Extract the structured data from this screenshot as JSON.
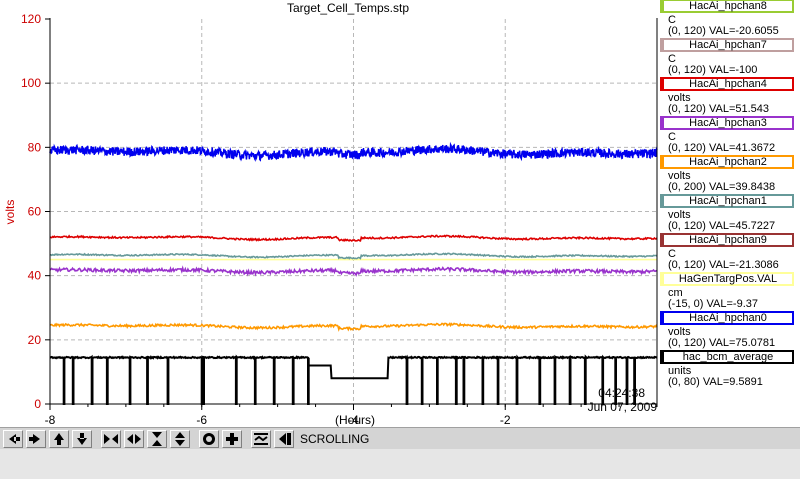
{
  "chart_data": {
    "type": "line",
    "title": "Target_Cell_Temps.stp",
    "ylabel": "volts",
    "xlabel": "(Hours)",
    "ylim": [
      0,
      120
    ],
    "xlim": [
      -8,
      0
    ],
    "yticks": [
      "0",
      "20",
      "40",
      "60",
      "80",
      "100",
      "120"
    ],
    "xticks": [
      "-8",
      "-6",
      "-4",
      "-2"
    ],
    "time_label": "04:24:38",
    "date_label": "Jun 07, 2009",
    "grid": true,
    "legend_position": "right",
    "series": [
      {
        "name": "HacAi_hpchan8",
        "unit": "C",
        "range": "(0, 120) VAL=-20.6055",
        "color": "#99cc33",
        "level": null,
        "noise": 0
      },
      {
        "name": "HacAi_hpchan7",
        "unit": "C",
        "range": "(0, 120) VAL=-100",
        "color": "#bf9f9f",
        "level": null,
        "noise": 0
      },
      {
        "name": "HacAi_hpchan4",
        "unit": "volts",
        "range": "(0, 120) VAL=51.543",
        "color": "#dd0000",
        "level": 51.8,
        "noise": 0.25
      },
      {
        "name": "HacAi_hpchan3",
        "unit": "C",
        "range": "(0, 120) VAL=41.3672",
        "color": "#9933cc",
        "level": 41.5,
        "noise": 0.5
      },
      {
        "name": "HacAi_hpchan2",
        "unit": "volts",
        "range": "(0, 200) VAL=39.8438",
        "color": "#ff9900",
        "level": 24.3,
        "noise": 0.35
      },
      {
        "name": "HacAi_hpchan1",
        "unit": "volts",
        "range": "(0, 120) VAL=45.7227",
        "color": "#669999",
        "level": 46.3,
        "noise": 0.2
      },
      {
        "name": "HacAi_hpchan9",
        "unit": "C",
        "range": "(0, 120) VAL=-21.3086",
        "color": "#993333",
        "level": null,
        "noise": 0
      },
      {
        "name": "HaGenTargPos.VAL",
        "unit": "cm",
        "range": "(-15, 0) VAL=-9.37",
        "color": "#ffff99",
        "level": 45.0,
        "noise": 0
      },
      {
        "name": "HacAi_hpchan0",
        "unit": "volts",
        "range": "(0, 120) VAL=75.0781",
        "color": "#0000ee",
        "level": 78.5,
        "noise": 1.4
      },
      {
        "name": "hac_bcm_average",
        "unit": "units",
        "range": "(0, 80) VAL=9.5891",
        "color": "#000000",
        "level": 14.5,
        "noise": 0.2
      }
    ]
  },
  "toolbar": {
    "status": "SCROLLING",
    "buttons": [
      {
        "name": "scroll-left-icon"
      },
      {
        "name": "scroll-right-icon"
      },
      {
        "name": "scroll-up-icon"
      },
      {
        "name": "scroll-down-icon"
      },
      {
        "name": "zoom-in-horizontal-icon"
      },
      {
        "name": "zoom-out-horizontal-icon"
      },
      {
        "name": "zoom-in-vertical-icon"
      },
      {
        "name": "zoom-out-vertical-icon"
      },
      {
        "name": "record-icon"
      },
      {
        "name": "add-icon"
      },
      {
        "name": "autoscale-icon"
      },
      {
        "name": "toggle-scroll-icon"
      }
    ]
  }
}
